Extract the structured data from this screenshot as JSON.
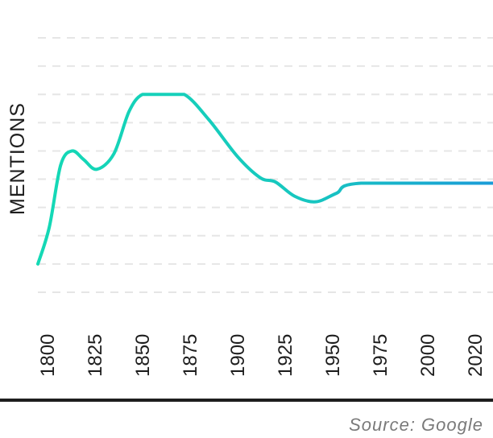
{
  "chart_data": {
    "type": "line",
    "title": "",
    "xlabel": "",
    "ylabel": "MENTIONS",
    "x_ticks": [
      "1800",
      "1825",
      "1850",
      "1875",
      "1900",
      "1925",
      "1950",
      "1975",
      "2000",
      "2020"
    ],
    "ylim": [
      0,
      9
    ],
    "grid": true,
    "series": [
      {
        "name": "mentions",
        "x": [
          1800,
          1806,
          1812,
          1818,
          1824,
          1831,
          1840,
          1848,
          1855,
          1865,
          1877,
          1890,
          1905,
          1917,
          1925,
          1935,
          1946,
          1957,
          1970,
          2040
        ],
        "y": [
          1,
          2.3,
          4.5,
          5,
          4.7,
          4.35,
          4.9,
          6.4,
          7,
          7,
          7,
          6.1,
          4.8,
          4.05,
          3.9,
          3.4,
          3.2,
          3.5,
          3.86,
          3.86
        ]
      }
    ],
    "colors": {
      "start": "#14d9b5",
      "end": "#1a9bd8",
      "grid": "#e6e6e6"
    },
    "source": "Source: Google"
  }
}
